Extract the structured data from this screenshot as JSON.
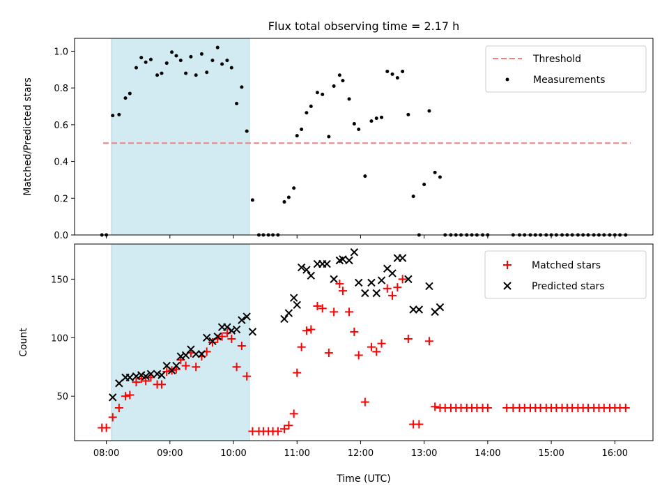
{
  "chart_data": {
    "title": "Flux total observing time = 2.17 h",
    "xlabel": "Time (UTC)",
    "x_tick_labels": [
      "08:00",
      "09:00",
      "10:00",
      "11:00",
      "12:00",
      "13:00",
      "14:00",
      "15:00",
      "16:00"
    ],
    "x_tick_hours": [
      8,
      9,
      10,
      11,
      12,
      13,
      14,
      15,
      16
    ],
    "xlim": [
      7.5,
      16.6
    ],
    "shaded_interval": [
      8.08,
      10.25
    ],
    "colors": {
      "shade": "#add8e6",
      "threshold": "#f08080",
      "measurement": "#000000",
      "matched": "#ff0000",
      "predicted": "#000000"
    },
    "panels": [
      {
        "type": "scatter",
        "ylabel": "Matched/Predicted stars",
        "ylim": [
          0.0,
          1.07
        ],
        "y_ticks": [
          0.0,
          0.2,
          0.4,
          0.6,
          0.8,
          1.0
        ],
        "y_tick_labels": [
          "0.0",
          "0.2",
          "0.4",
          "0.6",
          "0.8",
          "1.0"
        ],
        "legend": {
          "position": "top-right",
          "threshold_label": "Threshold",
          "measurement_label": "Measurements"
        },
        "threshold": {
          "value": 0.5,
          "x_range": [
            7.95,
            16.25
          ]
        },
        "measurements": [
          [
            7.93,
            0.0
          ],
          [
            8.0,
            0.0
          ],
          [
            8.1,
            0.65
          ],
          [
            8.2,
            0.655
          ],
          [
            8.3,
            0.745
          ],
          [
            8.37,
            0.77
          ],
          [
            8.47,
            0.91
          ],
          [
            8.55,
            0.965
          ],
          [
            8.62,
            0.94
          ],
          [
            8.7,
            0.955
          ],
          [
            8.8,
            0.87
          ],
          [
            8.87,
            0.88
          ],
          [
            8.95,
            0.935
          ],
          [
            9.03,
            0.995
          ],
          [
            9.1,
            0.975
          ],
          [
            9.17,
            0.95
          ],
          [
            9.25,
            0.88
          ],
          [
            9.33,
            0.97
          ],
          [
            9.41,
            0.87
          ],
          [
            9.5,
            0.985
          ],
          [
            9.58,
            0.885
          ],
          [
            9.67,
            0.95
          ],
          [
            9.75,
            1.02
          ],
          [
            9.82,
            0.93
          ],
          [
            9.9,
            0.95
          ],
          [
            9.97,
            0.91
          ],
          [
            10.05,
            0.715
          ],
          [
            10.13,
            0.805
          ],
          [
            10.21,
            0.565
          ],
          [
            10.3,
            0.19
          ],
          [
            10.4,
            0.0
          ],
          [
            10.47,
            0.0
          ],
          [
            10.55,
            0.0
          ],
          [
            10.62,
            0.0
          ],
          [
            10.7,
            0.0
          ],
          [
            10.8,
            0.18
          ],
          [
            10.87,
            0.205
          ],
          [
            10.95,
            0.255
          ],
          [
            11.0,
            0.54
          ],
          [
            11.07,
            0.575
          ],
          [
            11.15,
            0.665
          ],
          [
            11.22,
            0.7
          ],
          [
            11.32,
            0.775
          ],
          [
            11.4,
            0.765
          ],
          [
            11.5,
            0.535
          ],
          [
            11.58,
            0.81
          ],
          [
            11.67,
            0.87
          ],
          [
            11.72,
            0.84
          ],
          [
            11.82,
            0.74
          ],
          [
            11.9,
            0.605
          ],
          [
            11.97,
            0.575
          ],
          [
            12.07,
            0.32
          ],
          [
            12.17,
            0.62
          ],
          [
            12.25,
            0.635
          ],
          [
            12.33,
            0.64
          ],
          [
            12.42,
            0.89
          ],
          [
            12.5,
            0.875
          ],
          [
            12.58,
            0.855
          ],
          [
            12.66,
            0.89
          ],
          [
            12.75,
            0.655
          ],
          [
            12.83,
            0.21
          ],
          [
            12.92,
            0.0
          ],
          [
            13.0,
            0.275
          ],
          [
            13.08,
            0.675
          ],
          [
            13.17,
            0.34
          ],
          [
            13.25,
            0.315
          ],
          [
            13.33,
            0.0
          ],
          [
            13.42,
            0.0
          ],
          [
            13.5,
            0.0
          ],
          [
            13.58,
            0.0
          ],
          [
            13.67,
            0.0
          ],
          [
            13.75,
            0.0
          ],
          [
            13.83,
            0.0
          ],
          [
            13.92,
            0.0
          ],
          [
            14.0,
            0.0
          ],
          [
            14.4,
            0.0
          ],
          [
            14.5,
            0.0
          ],
          [
            14.58,
            0.0
          ],
          [
            14.67,
            0.0
          ],
          [
            14.75,
            0.0
          ],
          [
            14.83,
            0.0
          ],
          [
            14.92,
            0.0
          ],
          [
            15.0,
            0.0
          ],
          [
            15.08,
            0.0
          ],
          [
            15.17,
            0.0
          ],
          [
            15.25,
            0.0
          ],
          [
            15.33,
            0.0
          ],
          [
            15.42,
            0.0
          ],
          [
            15.5,
            0.0
          ],
          [
            15.58,
            0.0
          ],
          [
            15.67,
            0.0
          ],
          [
            15.75,
            0.0
          ],
          [
            15.83,
            0.0
          ],
          [
            15.92,
            0.0
          ],
          [
            16.0,
            0.0
          ],
          [
            16.08,
            0.0
          ],
          [
            16.17,
            0.0
          ]
        ]
      },
      {
        "type": "scatter",
        "ylabel": "Count",
        "ylim": [
          12,
          180
        ],
        "y_ticks": [
          50,
          100,
          150
        ],
        "y_tick_labels": [
          "50",
          "100",
          "150"
        ],
        "legend": {
          "position": "top-right",
          "matched_label": "Matched stars",
          "predicted_label": "Predicted stars"
        },
        "series": [
          {
            "name": "Matched stars",
            "marker": "plus",
            "points": [
              [
                7.93,
                23
              ],
              [
                8.0,
                23
              ],
              [
                8.1,
                32
              ],
              [
                8.2,
                40
              ],
              [
                8.3,
                50
              ],
              [
                8.37,
                51
              ],
              [
                8.47,
                62
              ],
              [
                8.55,
                65
              ],
              [
                8.62,
                63
              ],
              [
                8.7,
                66
              ],
              [
                8.8,
                60
              ],
              [
                8.87,
                60
              ],
              [
                8.95,
                71
              ],
              [
                9.03,
                72
              ],
              [
                9.1,
                73
              ],
              [
                9.17,
                81
              ],
              [
                9.25,
                76
              ],
              [
                9.33,
                87
              ],
              [
                9.41,
                75
              ],
              [
                9.5,
                84
              ],
              [
                9.58,
                88
              ],
              [
                9.67,
                96
              ],
              [
                9.75,
                99
              ],
              [
                9.82,
                101
              ],
              [
                9.9,
                104
              ],
              [
                9.97,
                99
              ],
              [
                10.05,
                75
              ],
              [
                10.13,
                93
              ],
              [
                10.21,
                67
              ],
              [
                10.3,
                20
              ],
              [
                10.4,
                20
              ],
              [
                10.47,
                20
              ],
              [
                10.55,
                20
              ],
              [
                10.62,
                20
              ],
              [
                10.7,
                20
              ],
              [
                10.8,
                22
              ],
              [
                10.87,
                25
              ],
              [
                10.95,
                35
              ],
              [
                11.0,
                70
              ],
              [
                11.07,
                92
              ],
              [
                11.15,
                106
              ],
              [
                11.22,
                107
              ],
              [
                11.32,
                127
              ],
              [
                11.4,
                125
              ],
              [
                11.5,
                87
              ],
              [
                11.58,
                122
              ],
              [
                11.67,
                146
              ],
              [
                11.72,
                140
              ],
              [
                11.82,
                122
              ],
              [
                11.9,
                105
              ],
              [
                11.97,
                85
              ],
              [
                12.07,
                45
              ],
              [
                12.17,
                92
              ],
              [
                12.25,
                88
              ],
              [
                12.33,
                95
              ],
              [
                12.42,
                142
              ],
              [
                12.5,
                136
              ],
              [
                12.58,
                143
              ],
              [
                12.66,
                150
              ],
              [
                12.75,
                99
              ],
              [
                12.83,
                26
              ],
              [
                12.92,
                26
              ],
              [
                13.08,
                97
              ],
              [
                13.17,
                41
              ],
              [
                13.25,
                40
              ],
              [
                13.33,
                40
              ],
              [
                13.42,
                40
              ],
              [
                13.5,
                40
              ],
              [
                13.58,
                40
              ],
              [
                13.67,
                40
              ],
              [
                13.75,
                40
              ],
              [
                13.83,
                40
              ],
              [
                13.92,
                40
              ],
              [
                14.0,
                40
              ],
              [
                14.3,
                40
              ],
              [
                14.4,
                40
              ],
              [
                14.5,
                40
              ],
              [
                14.58,
                40
              ],
              [
                14.67,
                40
              ],
              [
                14.75,
                40
              ],
              [
                14.83,
                40
              ],
              [
                14.92,
                40
              ],
              [
                15.0,
                40
              ],
              [
                15.08,
                40
              ],
              [
                15.17,
                40
              ],
              [
                15.25,
                40
              ],
              [
                15.33,
                40
              ],
              [
                15.42,
                40
              ],
              [
                15.5,
                40
              ],
              [
                15.58,
                40
              ],
              [
                15.67,
                40
              ],
              [
                15.75,
                40
              ],
              [
                15.83,
                40
              ],
              [
                15.92,
                40
              ],
              [
                16.0,
                40
              ],
              [
                16.08,
                40
              ],
              [
                16.17,
                40
              ]
            ]
          },
          {
            "name": "Predicted stars",
            "marker": "x",
            "points": [
              [
                8.1,
                49
              ],
              [
                8.2,
                61
              ],
              [
                8.3,
                66
              ],
              [
                8.37,
                66
              ],
              [
                8.47,
                67
              ],
              [
                8.55,
                68
              ],
              [
                8.62,
                67
              ],
              [
                8.7,
                69
              ],
              [
                8.8,
                69
              ],
              [
                8.87,
                68
              ],
              [
                8.95,
                76
              ],
              [
                9.03,
                72
              ],
              [
                9.1,
                76
              ],
              [
                9.17,
                84
              ],
              [
                9.25,
                85
              ],
              [
                9.33,
                90
              ],
              [
                9.41,
                86
              ],
              [
                9.5,
                86
              ],
              [
                9.58,
                100
              ],
              [
                9.67,
                97
              ],
              [
                9.75,
                101
              ],
              [
                9.82,
                109
              ],
              [
                9.9,
                109
              ],
              [
                9.97,
                106
              ],
              [
                10.05,
                107
              ],
              [
                10.13,
                115
              ],
              [
                10.21,
                118
              ],
              [
                10.3,
                105
              ],
              [
                10.8,
                116
              ],
              [
                10.87,
                121
              ],
              [
                10.95,
                134
              ],
              [
                11.0,
                128
              ],
              [
                11.07,
                160
              ],
              [
                11.15,
                158
              ],
              [
                11.22,
                153
              ],
              [
                11.32,
                163
              ],
              [
                11.4,
                163
              ],
              [
                11.47,
                163
              ],
              [
                11.58,
                150
              ],
              [
                11.67,
                166
              ],
              [
                11.72,
                167
              ],
              [
                11.82,
                166
              ],
              [
                11.9,
                173
              ],
              [
                11.97,
                147
              ],
              [
                12.07,
                138
              ],
              [
                12.17,
                147
              ],
              [
                12.25,
                138
              ],
              [
                12.33,
                149
              ],
              [
                12.42,
                159
              ],
              [
                12.5,
                155
              ],
              [
                12.58,
                168
              ],
              [
                12.66,
                168
              ],
              [
                12.75,
                150
              ],
              [
                12.83,
                124
              ],
              [
                12.92,
                124
              ],
              [
                13.08,
                144
              ],
              [
                13.17,
                122
              ],
              [
                13.25,
                126
              ]
            ]
          }
        ]
      }
    ]
  }
}
